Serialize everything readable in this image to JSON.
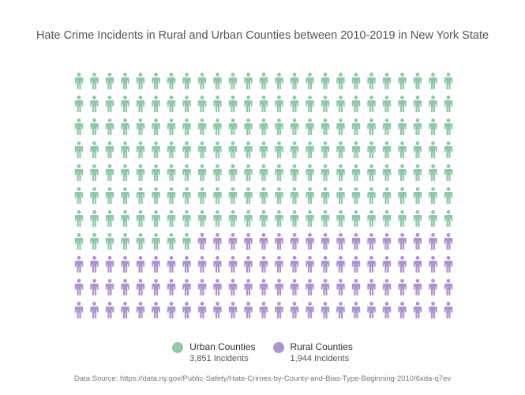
{
  "chart_data": {
    "type": "waffle",
    "title": "Hate Crime Incidents in Rural and Urban Counties between 2010-2019 in New York State",
    "rows": 11,
    "columns": 25,
    "series": [
      {
        "name": "Urban Counties",
        "value": 3851,
        "value_label": "3,851 Incidents",
        "icons": 183,
        "color": "#8fc7a8"
      },
      {
        "name": "Rural Counties",
        "value": 1944,
        "value_label": "1,944 Incidents",
        "icons": 92,
        "color": "#ac94cc"
      }
    ],
    "legend_position": "bottom",
    "source": "Data Source: https://data.ny.gov/Public-Safety/Hate-Crimes-by-County-and-Bias-Type-Beginning-2010/6xda-q7ev"
  }
}
